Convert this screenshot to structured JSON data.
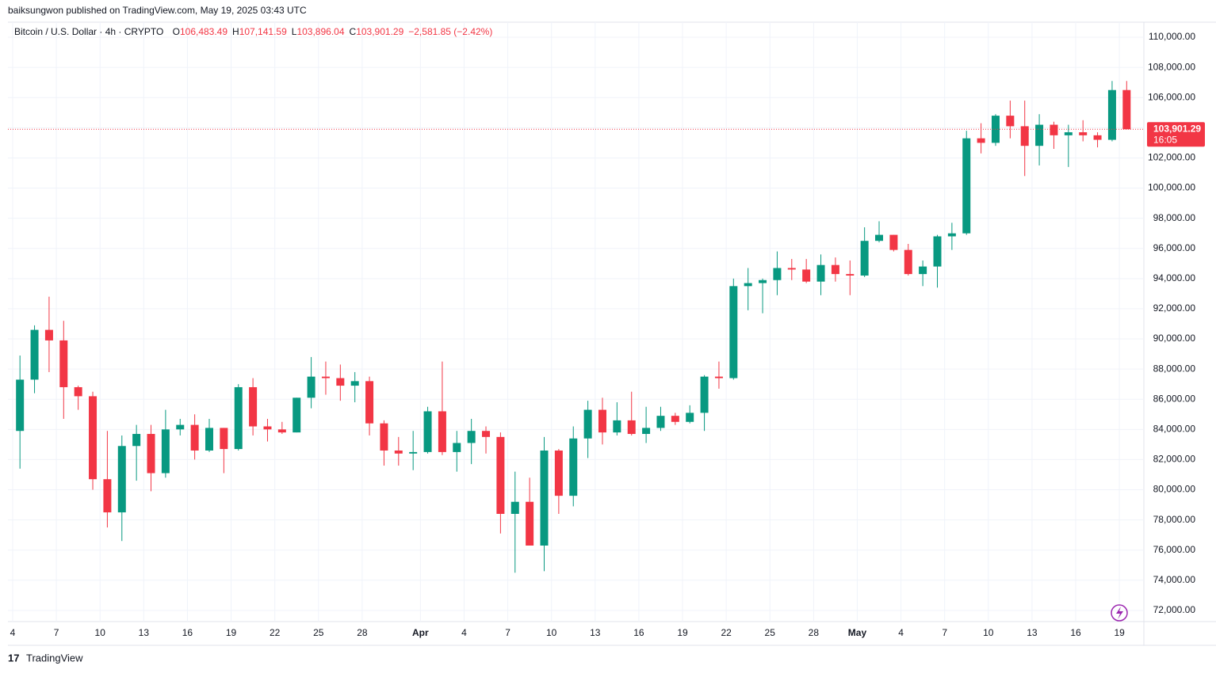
{
  "attribution": "baiksungwon published on TradingView.com, May 19, 2025 03:43 UTC",
  "brand": "TradingView",
  "chart_data": {
    "type": "candlestick",
    "title": "Bitcoin / U.S. Dollar · 4h · CRYPTO",
    "ohlc_legend": [
      {
        "key": "O",
        "value": "106,483.49"
      },
      {
        "key": "H",
        "value": "107,141.59"
      },
      {
        "key": "L",
        "value": "103,896.04"
      },
      {
        "key": "C",
        "value": "103,901.29"
      }
    ],
    "change": "−2,581.85 (−2.42%)",
    "last_price": {
      "value": 103901.29,
      "label": "103,901.29"
    },
    "countdown": "16:05",
    "up_color": "#089981",
    "down_color": "#f23645",
    "grid": true,
    "categories": [
      "4",
      null,
      null,
      "7",
      null,
      null,
      "10",
      null,
      null,
      "13",
      null,
      null,
      "16",
      null,
      null,
      "19",
      null,
      null,
      "22",
      null,
      null,
      "25",
      null,
      null,
      "28",
      null,
      null,
      null,
      "Apr",
      null,
      null,
      "4",
      null,
      null,
      "7",
      null,
      null,
      "10",
      null,
      null,
      "13",
      null,
      null,
      "16",
      null,
      null,
      "19",
      null,
      null,
      "22",
      null,
      null,
      "25",
      null,
      null,
      "28",
      null,
      null,
      "May",
      null,
      null,
      "4",
      null,
      null,
      "7",
      null,
      null,
      "10",
      null,
      null,
      "13",
      null,
      null,
      "16",
      null,
      null,
      "19"
    ],
    "open": [
      83900,
      87300,
      90600,
      89900,
      86800,
      86200,
      80700,
      78500,
      82900,
      83700,
      81100,
      84000,
      84300,
      82600,
      84100,
      82700,
      86800,
      84200,
      84000,
      83800,
      86100,
      87500,
      87400,
      86900,
      87200,
      84400,
      82600,
      82400,
      82500,
      85200,
      82500,
      83100,
      83900,
      83500,
      78400,
      79200,
      76300,
      82600,
      79600,
      83400,
      85300,
      83800,
      84600,
      83700,
      84100,
      84900,
      84500,
      85100,
      87500,
      87400,
      93500,
      93700,
      93900,
      94700,
      94600,
      93800,
      94900,
      94300,
      94200,
      96500,
      96900,
      95900,
      94300,
      94800,
      96800,
      97000,
      103300,
      103000,
      104800,
      104100,
      102800,
      104200,
      103500,
      103700,
      103500,
      103200,
      106500
    ],
    "high": [
      88900,
      90900,
      92800,
      91200,
      86900,
      86500,
      83900,
      83600,
      84300,
      84300,
      85300,
      84700,
      85000,
      84700,
      84100,
      87000,
      87400,
      84700,
      84500,
      86100,
      88800,
      88500,
      88300,
      87800,
      87500,
      84600,
      83500,
      83900,
      85500,
      88500,
      83900,
      84700,
      84200,
      83800,
      81200,
      80800,
      83500,
      82700,
      84200,
      85900,
      86100,
      85800,
      86500,
      85500,
      85500,
      85100,
      85600,
      87600,
      88500,
      94000,
      94700,
      94000,
      95800,
      95300,
      95300,
      95600,
      95400,
      95200,
      97400,
      97800,
      96900,
      96300,
      95200,
      96900,
      97700,
      103800,
      104300,
      104900,
      105800,
      105800,
      104900,
      104400,
      104200,
      104500,
      103700,
      107100,
      107100
    ],
    "low": [
      81400,
      86400,
      87800,
      84700,
      85300,
      80000,
      77500,
      76600,
      80600,
      79900,
      80800,
      83600,
      82000,
      82500,
      81100,
      82600,
      83600,
      83200,
      83700,
      83800,
      85400,
      86300,
      85900,
      85800,
      83600,
      81600,
      81600,
      81300,
      82400,
      82300,
      81200,
      81700,
      82400,
      77100,
      74500,
      76300,
      74600,
      78400,
      78900,
      82100,
      83000,
      83600,
      83600,
      83100,
      83900,
      84300,
      84400,
      83900,
      86700,
      87300,
      91900,
      91700,
      92900,
      93900,
      93700,
      92900,
      93800,
      92900,
      94100,
      96400,
      95800,
      94200,
      93500,
      93400,
      95900,
      96900,
      102300,
      102800,
      103300,
      100800,
      101500,
      102600,
      101400,
      103100,
      102700,
      103100,
      103900
    ],
    "close": [
      87300,
      90600,
      89900,
      86800,
      86200,
      80700,
      78500,
      82900,
      83700,
      81100,
      84000,
      84300,
      82600,
      84100,
      82700,
      86800,
      84200,
      84000,
      83800,
      86100,
      87500,
      87400,
      86900,
      87200,
      84400,
      82600,
      82400,
      82500,
      85200,
      82500,
      83100,
      83900,
      83500,
      78400,
      79200,
      76300,
      82600,
      79600,
      83400,
      85300,
      83800,
      84600,
      83700,
      84100,
      84900,
      84500,
      85100,
      87500,
      87400,
      93500,
      93700,
      93900,
      94700,
      94600,
      93800,
      94900,
      94300,
      94200,
      96500,
      96900,
      95900,
      94300,
      94800,
      96800,
      97000,
      103300,
      103000,
      104800,
      104100,
      102800,
      104200,
      103500,
      103700,
      103500,
      103200,
      106500,
      103900
    ],
    "ylim": [
      71260,
      111000
    ],
    "yticks": [
      {
        "value": 72000,
        "label": "72,000.00"
      },
      {
        "value": 74000,
        "label": "74,000.00"
      },
      {
        "value": 76000,
        "label": "76,000.00"
      },
      {
        "value": 78000,
        "label": "78,000.00"
      },
      {
        "value": 80000,
        "label": "80,000.00"
      },
      {
        "value": 82000,
        "label": "82,000.00"
      },
      {
        "value": 84000,
        "label": "84,000.00"
      },
      {
        "value": 86000,
        "label": "86,000.00"
      },
      {
        "value": 88000,
        "label": "88,000.00"
      },
      {
        "value": 90000,
        "label": "90,000.00"
      },
      {
        "value": 92000,
        "label": "92,000.00"
      },
      {
        "value": 94000,
        "label": "94,000.00"
      },
      {
        "value": 96000,
        "label": "96,000.00"
      },
      {
        "value": 98000,
        "label": "98,000.00"
      },
      {
        "value": 100000,
        "label": "100,000.00"
      },
      {
        "value": 102000,
        "label": "102,000.00"
      },
      {
        "value": 104000,
        "label": "104,000.00"
      },
      {
        "value": 106000,
        "label": "106,000.00"
      },
      {
        "value": 108000,
        "label": "108,000.00"
      },
      {
        "value": 110000,
        "label": "110,000.00"
      }
    ]
  }
}
